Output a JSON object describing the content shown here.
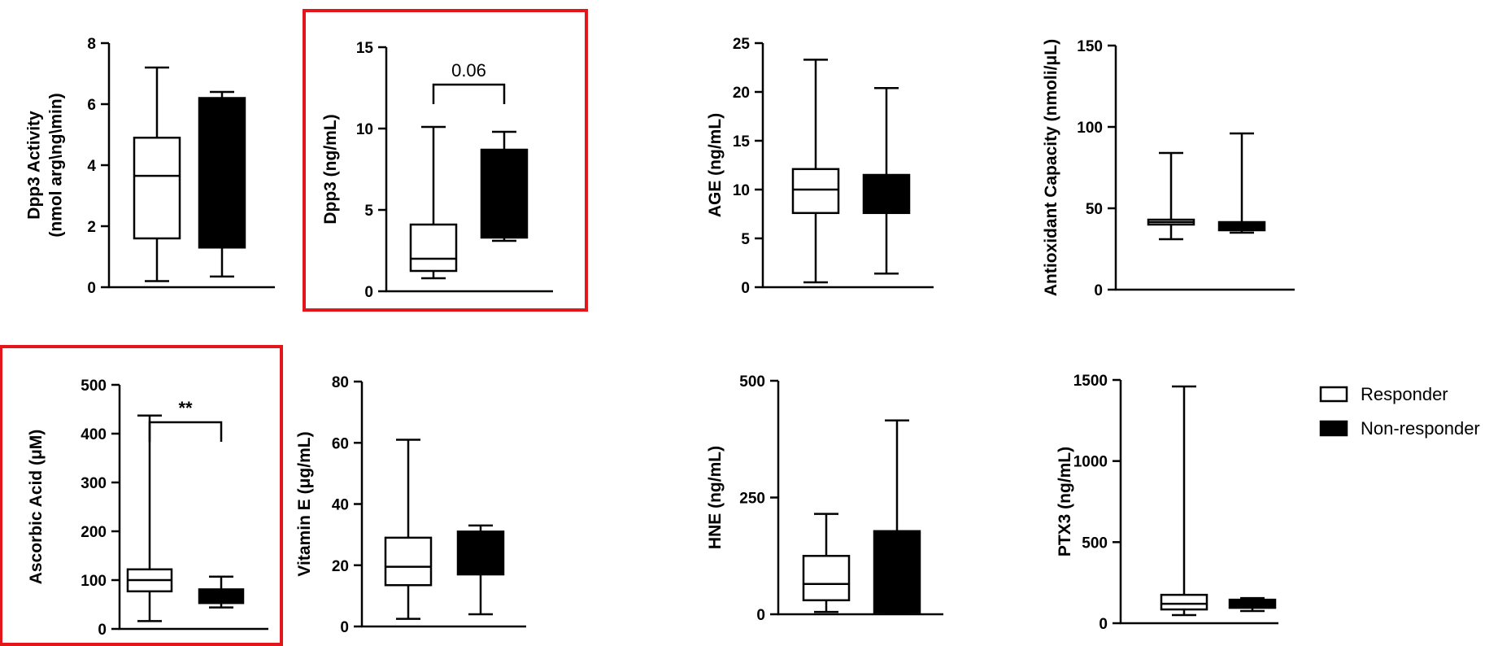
{
  "colors": {
    "highlight": "#e3161b",
    "responder_fill": "#ffffff",
    "nonresponder_fill": "#000000",
    "stroke": "#000000"
  },
  "legend": [
    {
      "label": "Responder",
      "fill": "#ffffff"
    },
    {
      "label": "Non-responder",
      "fill": "#000000"
    }
  ],
  "chart_data": [
    {
      "id": "dpp3-activity",
      "type": "box",
      "ylabel": [
        "Dpp3 Activity",
        "(nmol arg\\ng\\min)"
      ],
      "ylim": [
        0,
        8
      ],
      "ticks": [
        "0",
        "2",
        "4",
        "6",
        "8"
      ],
      "highlight": false,
      "annotation": null,
      "series": [
        {
          "name": "Responder",
          "min": 0.2,
          "q1": 1.6,
          "median": 3.65,
          "q3": 4.9,
          "max": 7.2
        },
        {
          "name": "Non-responder",
          "min": 0.35,
          "q1": 1.3,
          "median": 3.5,
          "q3": 6.2,
          "max": 6.4
        }
      ]
    },
    {
      "id": "dpp3",
      "type": "box",
      "ylabel": [
        "Dpp3 (ng/mL)"
      ],
      "ylim": [
        0,
        15
      ],
      "ticks": [
        "0",
        "5",
        "10",
        "15"
      ],
      "highlight": true,
      "annotation": "0.06",
      "series": [
        {
          "name": "Responder",
          "min": 0.8,
          "q1": 1.25,
          "median": 2.0,
          "q3": 4.1,
          "max": 10.1
        },
        {
          "name": "Non-responder",
          "min": 3.1,
          "q1": 3.3,
          "median": 5.5,
          "q3": 8.7,
          "max": 9.8
        }
      ]
    },
    {
      "id": "age",
      "type": "box",
      "ylabel": [
        "AGE (ng/mL)"
      ],
      "ylim": [
        0,
        25
      ],
      "ticks": [
        "0",
        "5",
        "10",
        "15",
        "20",
        "25"
      ],
      "highlight": false,
      "annotation": null,
      "series": [
        {
          "name": "Responder",
          "min": 0.5,
          "q1": 7.6,
          "median": 10.0,
          "q3": 12.1,
          "max": 23.3
        },
        {
          "name": "Non-responder",
          "min": 1.4,
          "q1": 7.6,
          "median": 10.0,
          "q3": 11.5,
          "max": 20.4
        }
      ]
    },
    {
      "id": "antioxidant-capacity",
      "type": "box",
      "ylabel": [
        "Antioxidant Capacity (nmoli/μL)"
      ],
      "ylim": [
        0,
        150
      ],
      "ticks": [
        "0",
        "50",
        "100",
        "150"
      ],
      "highlight": false,
      "annotation": null,
      "series": [
        {
          "name": "Responder",
          "min": 31,
          "q1": 40,
          "median": 41.5,
          "q3": 43,
          "max": 84
        },
        {
          "name": "Non-responder",
          "min": 35,
          "q1": 36.5,
          "median": 39,
          "q3": 41.5,
          "max": 96
        }
      ]
    },
    {
      "id": "ascorbic-acid",
      "type": "box",
      "ylabel": [
        "Ascorbic Acid (μM)"
      ],
      "ylim": [
        0,
        500
      ],
      "ticks": [
        "0",
        "100",
        "200",
        "300",
        "400",
        "500"
      ],
      "highlight": true,
      "annotation": "**",
      "series": [
        {
          "name": "Responder",
          "min": 16,
          "q1": 77,
          "median": 100,
          "q3": 122,
          "max": 437
        },
        {
          "name": "Non-responder",
          "min": 44,
          "q1": 53,
          "median": 65,
          "q3": 81,
          "max": 107
        }
      ]
    },
    {
      "id": "vitamin-e",
      "type": "box",
      "ylabel": [
        "Vitamin E (μg/mL)"
      ],
      "ylim": [
        0,
        80
      ],
      "ticks": [
        "0",
        "20",
        "40",
        "60",
        "80"
      ],
      "highlight": false,
      "annotation": null,
      "series": [
        {
          "name": "Responder",
          "min": 2.5,
          "q1": 13.5,
          "median": 19.5,
          "q3": 29,
          "max": 61
        },
        {
          "name": "Non-responder",
          "min": 4,
          "q1": 17,
          "median": 25,
          "q3": 31,
          "max": 33
        }
      ]
    },
    {
      "id": "hne",
      "type": "box",
      "ylabel": [
        "HNE (ng/mL)"
      ],
      "ylim": [
        0,
        500
      ],
      "ticks": [
        "0",
        "250",
        "500"
      ],
      "highlight": false,
      "annotation": null,
      "series": [
        {
          "name": "Responder",
          "min": 5,
          "q1": 30,
          "median": 65,
          "q3": 125,
          "max": 215
        },
        {
          "name": "Non-responder",
          "min": 2,
          "q1": 4,
          "median": 10,
          "q3": 178,
          "max": 415
        }
      ]
    },
    {
      "id": "ptx3",
      "type": "box",
      "ylabel": [
        "PTX3 (ng/mL)"
      ],
      "ylim": [
        0,
        1500
      ],
      "ticks": [
        "0",
        "500",
        "1000",
        "1500"
      ],
      "highlight": false,
      "annotation": null,
      "series": [
        {
          "name": "Responder",
          "min": 50,
          "q1": 85,
          "median": 120,
          "q3": 175,
          "max": 1460
        },
        {
          "name": "Non-responder",
          "min": 75,
          "q1": 95,
          "median": 120,
          "q3": 145,
          "max": 155
        }
      ]
    }
  ]
}
